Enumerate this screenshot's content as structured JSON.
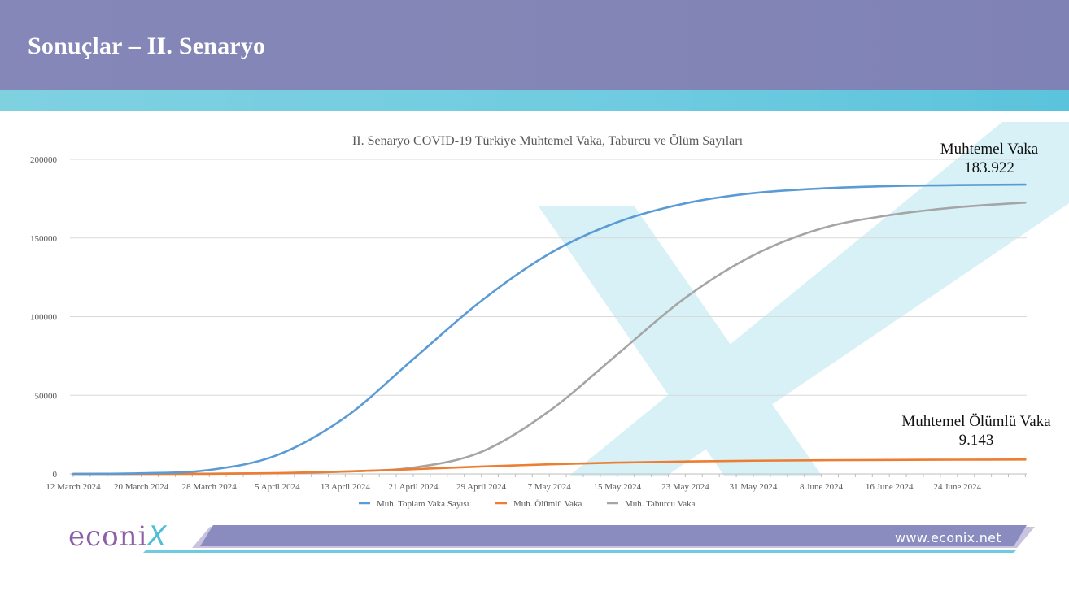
{
  "slide": {
    "title": "Sonuçlar – II. Senaryo"
  },
  "colors": {
    "header": "#8587b8",
    "stripe": "#6fcbe0",
    "watermark": "#d8f1f7",
    "footer_band": "#8a8cc0",
    "logo": "#8e5fa8",
    "logo_x": "#4fbfd8"
  },
  "footer": {
    "logo_text": "econi",
    "logo_mark": "X",
    "website": "www.econix.net"
  },
  "chart_data": {
    "type": "line",
    "title": "II. Senaryo COVID-19 Türkiye Muhtemel Vaka, Taburcu ve Ölüm  Sayıları",
    "xlabel": "",
    "ylabel": "",
    "ylim": [
      0,
      200000
    ],
    "y_ticks": [
      0,
      50000,
      100000,
      150000,
      200000
    ],
    "y_tick_labels": [
      "0",
      "50000",
      "100000",
      "150000",
      "200000"
    ],
    "x_tick_labels": [
      "12 March 2024",
      "20 March 2024",
      "28 March 2024",
      "5 April 2024",
      "13 April 2024",
      "21 April 2024",
      "29 April 2024",
      "7 May 2024",
      "15 May 2024",
      "23 May 2024",
      "31 May 2024",
      "8 June 2024",
      "16 June 2024",
      "24 June 2024"
    ],
    "x_day_step": 8,
    "x_days": [
      0,
      8,
      16,
      24,
      32,
      40,
      48,
      56,
      64,
      72,
      80,
      88,
      96,
      104,
      112
    ],
    "grid": true,
    "legend_position": "bottom",
    "series": [
      {
        "name": "Muh. Toplam Vaka Sayısı",
        "color": "#5b9bd5",
        "values": [
          0,
          400,
          2500,
          12000,
          36000,
          73000,
          110000,
          140000,
          160000,
          172000,
          178500,
          181500,
          183000,
          183600,
          183922
        ]
      },
      {
        "name": "Muh. Ölümlü Vaka",
        "color": "#ed7d31",
        "values": [
          0,
          20,
          100,
          500,
          1500,
          3000,
          4700,
          6100,
          7200,
          7900,
          8400,
          8700,
          8900,
          9050,
          9143
        ]
      },
      {
        "name": "Muh. Taburcu Vaka",
        "color": "#a5a5a5",
        "values": [
          0,
          0,
          100,
          400,
          1500,
          4000,
          14000,
          40000,
          76000,
          112000,
          139000,
          156000,
          164500,
          169500,
          172500
        ]
      }
    ],
    "annotations": [
      {
        "line1": "Muhtemel Vaka",
        "line2": "183.922"
      },
      {
        "line1": "Muhtemel Ölümlü Vaka",
        "line2": "9.143"
      }
    ]
  }
}
